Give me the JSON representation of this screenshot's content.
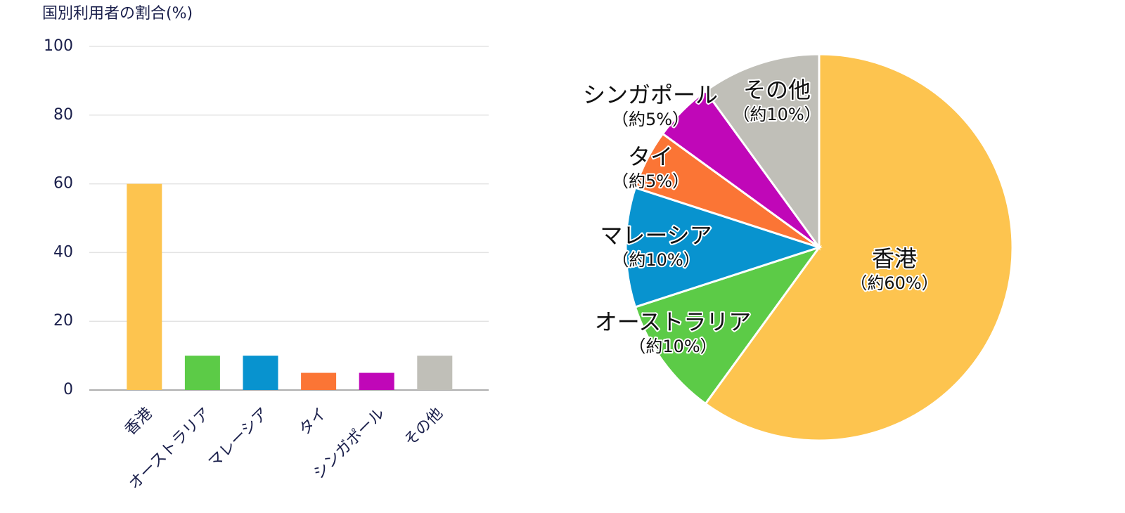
{
  "chart_data": [
    {
      "type": "bar",
      "title": "国別利用者の割合(%)",
      "categories": [
        "香港",
        "オーストラリア",
        "マレーシア",
        "タイ",
        "シンガポール",
        "その他"
      ],
      "values": [
        60,
        10,
        10,
        5,
        5,
        10
      ],
      "colors": [
        "#fdc44f",
        "#5ccb47",
        "#0893cf",
        "#fb7535",
        "#c007b8",
        "#c0bfb8"
      ],
      "ylim": [
        0,
        100
      ],
      "yticks": [
        0,
        20,
        40,
        60,
        80,
        100
      ],
      "grid": true
    },
    {
      "type": "pie",
      "categories": [
        "香港",
        "オーストラリア",
        "マレーシア",
        "タイ",
        "シンガポール",
        "その他"
      ],
      "values": [
        60,
        10,
        10,
        5,
        5,
        10
      ],
      "value_labels": [
        "（約60%）",
        "（約10%）",
        "（約10%）",
        "（約5%）",
        "（約5%）",
        "（約10%）"
      ],
      "colors": [
        "#fdc44f",
        "#5ccb47",
        "#0893cf",
        "#fb7535",
        "#c007b8",
        "#c0bfb8"
      ]
    }
  ]
}
